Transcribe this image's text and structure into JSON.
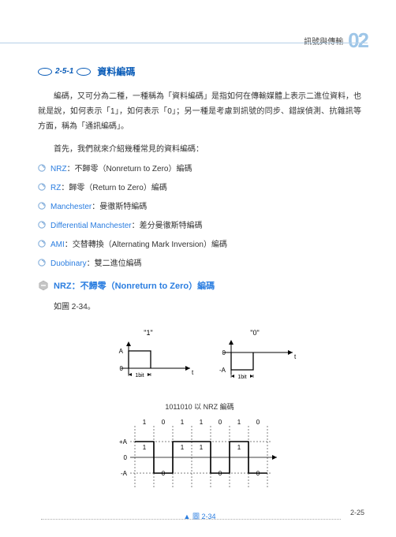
{
  "header": {
    "text": "訊號與傳輸",
    "chapter": "02"
  },
  "section": {
    "number": "2-5-1",
    "title": "資料編碼"
  },
  "para1": "編碼，又可分為二種，一種稱為「資料編碼」是指如何在傳輸媒體上表示二進位資料，也就是說，如何表示「1」，如何表示「0」；另一種是考慮到訊號的同步、錯誤偵測、抗雜訊等方面，稱為「通訊編碼」。",
  "intro": "首先，我們就來介紹幾種常見的資料編碼：",
  "items": [
    {
      "kw": "NRZ",
      "txt": "：不歸零（Nonreturn to Zero）編碼"
    },
    {
      "kw": "RZ",
      "txt": "：歸零（Return to Zero）編碼"
    },
    {
      "kw": "Manchester",
      "txt": "：曼徹斯特編碼"
    },
    {
      "kw": "Differential Manchester",
      "txt": "：差分曼徹斯特編碼"
    },
    {
      "kw": "AMI",
      "txt": "：交替轉換（Alternating Mark Inversion）編碼"
    },
    {
      "kw": "Duobinary",
      "txt": "：雙二進位編碼"
    }
  ],
  "sub": {
    "title": "NRZ：不歸零（Nonreturn to Zero）編碼"
  },
  "figref": "如圖 2-34。",
  "caption": "▲ 圖 2-34",
  "diagram": {
    "top": {
      "left": {
        "label": "\"1\"",
        "levA": "A",
        "lev0": "0",
        "bit": "1bit",
        "axis_t": "t"
      },
      "right": {
        "label": "\"0\"",
        "lev0": "0",
        "levA": "-A",
        "bit": "1bit",
        "axis_t": "t"
      }
    },
    "mid_text": "1011010 以 NRZ 編碼",
    "bottom": {
      "bits": [
        "1",
        "0",
        "1",
        "1",
        "0",
        "1",
        "0"
      ],
      "levels": {
        "posA": "+A",
        "zero": "0",
        "negA": "-A"
      },
      "vals": [
        "1",
        "0",
        "1",
        "1",
        "0",
        "1",
        "0"
      ]
    },
    "colors": {
      "stroke": "#000000",
      "text": "#000000"
    }
  },
  "pagenum": "2-25"
}
